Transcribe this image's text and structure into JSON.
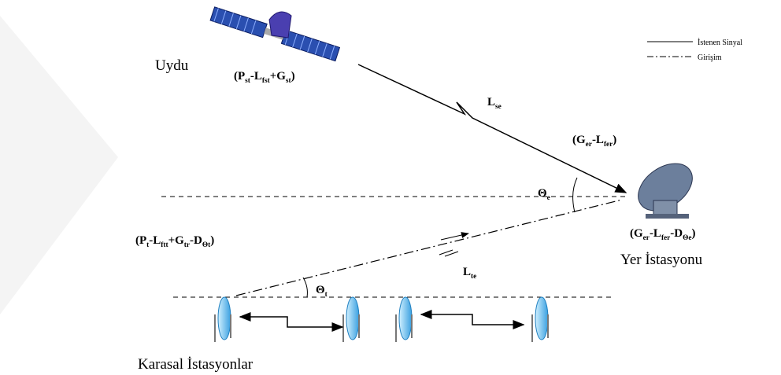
{
  "labels": {
    "satellite": "Uydu",
    "satellite_eirp": [
      "(P",
      "st",
      "-L",
      "fst",
      "+G",
      "st",
      ")"
    ],
    "path_loss_se": [
      "L",
      "se"
    ],
    "earth_gain": [
      "(G",
      "er",
      "-L",
      "fer",
      ")"
    ],
    "theta_e": [
      "Θ",
      "e"
    ],
    "terrestrial_eirp": [
      "(P",
      "t",
      "-L",
      "ftt",
      "+G",
      "tr",
      "-D",
      "Θt",
      ")"
    ],
    "earth_interference_gain": [
      "(G",
      "er",
      "-L",
      "fer",
      "-D",
      "Θe",
      ")"
    ],
    "earth_station": "Yer İstasyonu",
    "path_loss_te": [
      "L",
      "te"
    ],
    "theta_t": [
      "Θ",
      "t"
    ],
    "terrestrial_stations": "Karasal İstasyonlar"
  },
  "legend": {
    "wanted": "İstenen Sinyal",
    "interference": "Girişim"
  }
}
